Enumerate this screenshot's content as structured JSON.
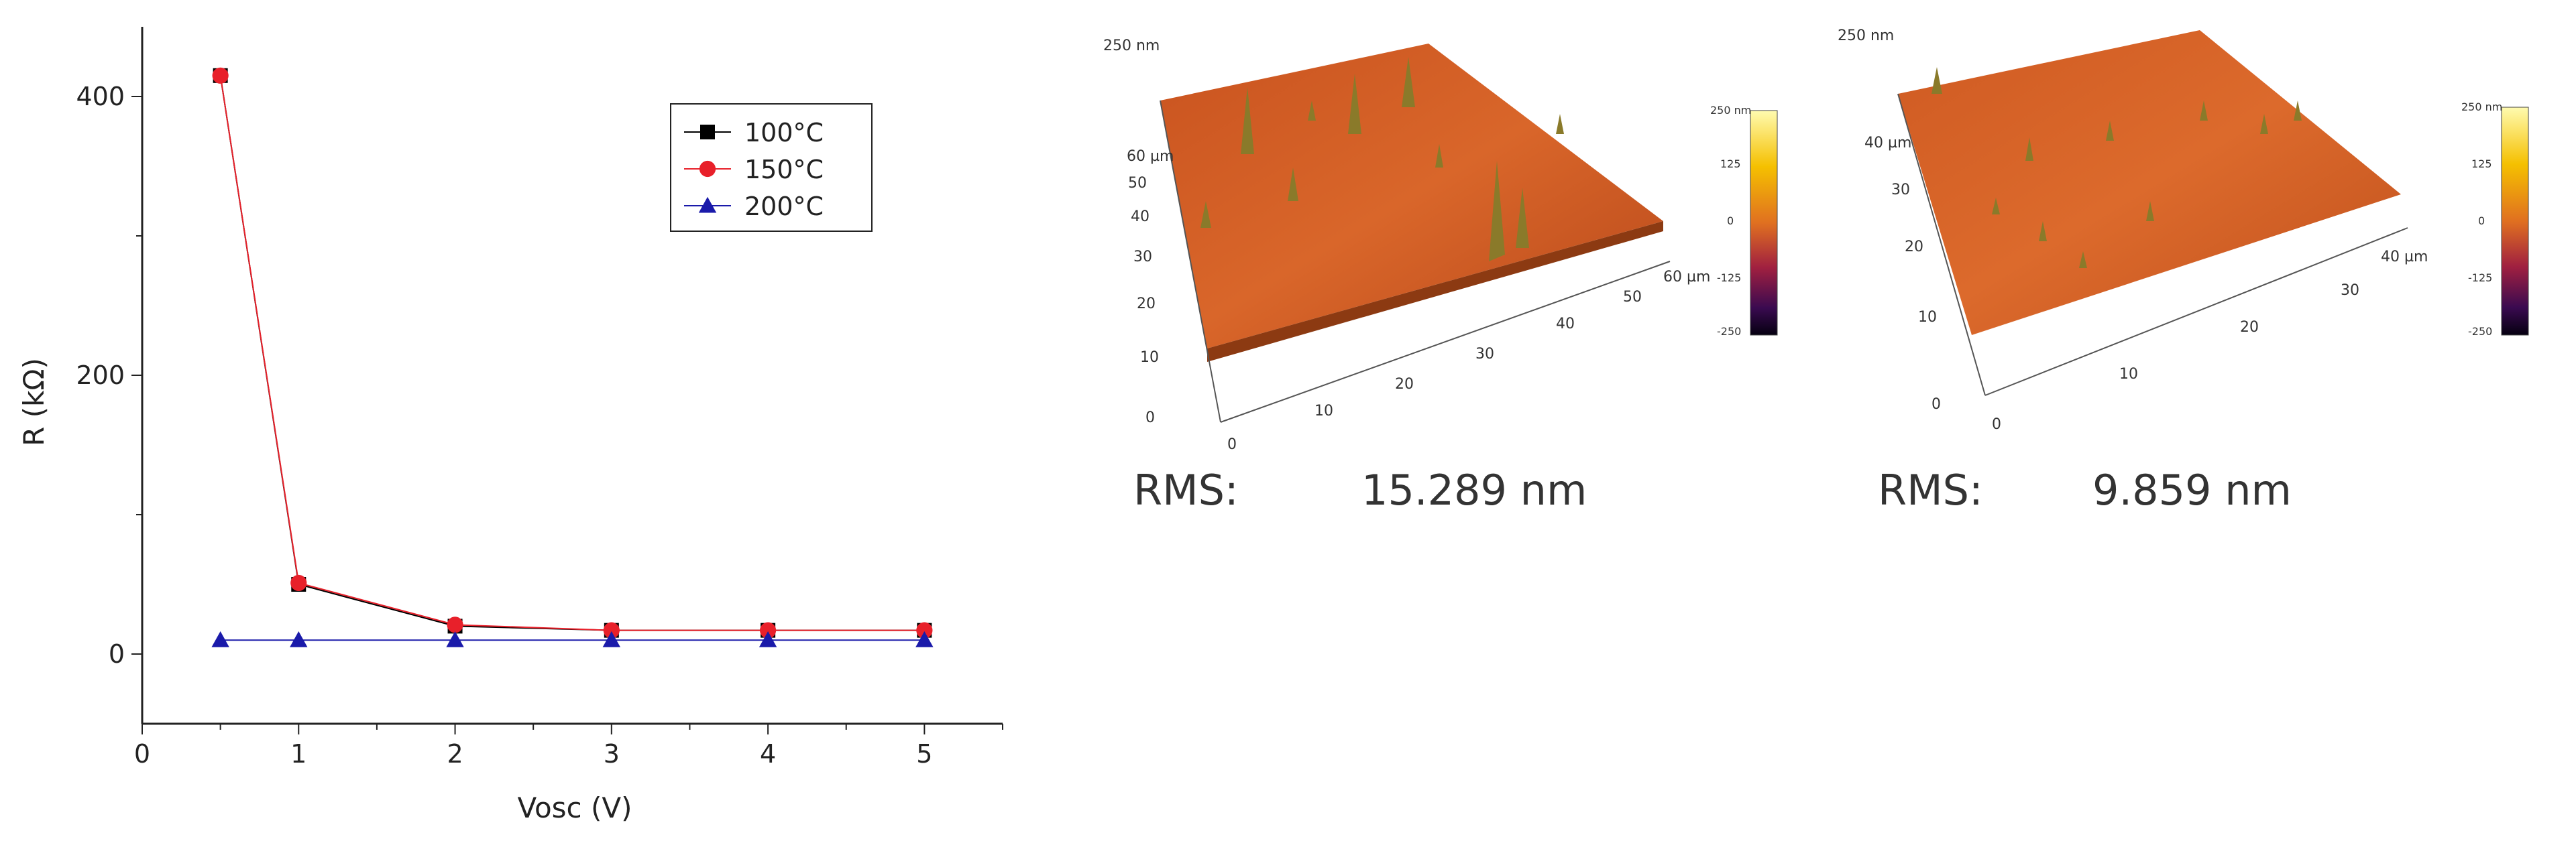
{
  "chart_data": {
    "type": "line",
    "xlabel": "Vosc (V)",
    "ylabel": "R (kΩ)",
    "xlim": [
      0,
      5.5
    ],
    "ylim": [
      -50,
      450
    ],
    "xticks": [
      "0",
      "1",
      "2",
      "3",
      "4",
      "5"
    ],
    "yticks": [
      "0",
      "200",
      "400"
    ],
    "grid": false,
    "legend_position": "top-right",
    "series": [
      {
        "name": "100°C",
        "color": "#000000",
        "marker": "square",
        "x": [
          0.5,
          1,
          2,
          3,
          4,
          5
        ],
        "values": [
          415,
          50,
          20,
          17,
          17,
          17
        ]
      },
      {
        "name": "150°C",
        "color": "#e8202a",
        "marker": "circle",
        "x": [
          0.5,
          1,
          2,
          3,
          4,
          5
        ],
        "values": [
          415,
          51,
          21,
          17,
          17,
          17
        ]
      },
      {
        "name": "200°C",
        "color": "#1a1aaa",
        "marker": "triangle",
        "x": [
          0.5,
          1,
          2,
          3,
          4,
          5
        ],
        "values": [
          10,
          10,
          10,
          10,
          10,
          10
        ]
      }
    ]
  },
  "afm_images": [
    {
      "rms_label": "RMS:",
      "rms_value": "15.289 nm",
      "z_top_label": "250 nm",
      "y_unit_label": "60 µm",
      "x_unit_label": "60 µm",
      "y_ticks": [
        "0",
        "10",
        "20",
        "30",
        "40",
        "50"
      ],
      "x_ticks": [
        "0",
        "10",
        "20",
        "30",
        "40",
        "50"
      ],
      "colorbar_top": "250 nm",
      "colorbar_ticks": [
        "125",
        "0",
        "-125",
        "-250"
      ]
    },
    {
      "rms_label": "RMS:",
      "rms_value": "9.859 nm",
      "z_top_label": "250 nm",
      "y_unit_label": "40 µm",
      "x_unit_label": "40 µm",
      "y_ticks": [
        "0",
        "10",
        "20",
        "30"
      ],
      "x_ticks": [
        "0",
        "10",
        "20",
        "30"
      ],
      "colorbar_top": "250 nm",
      "colorbar_ticks": [
        "125",
        "0",
        "-125",
        "-250"
      ]
    }
  ],
  "colors": {
    "surface_top": "#d9662a",
    "surface_mid": "#c4501e",
    "peak": "#8a7a2a",
    "colorbar_gradient": [
      "#fffbb0",
      "#f5c000",
      "#e07020",
      "#a02040",
      "#3a0a50",
      "#050010"
    ]
  }
}
